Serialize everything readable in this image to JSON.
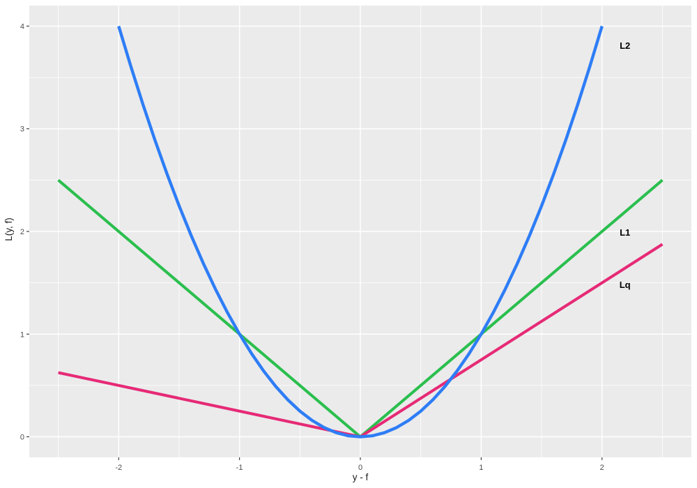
{
  "figure": {
    "bg": "#FFFFFF",
    "panel_bg": "#EBEBEB",
    "grid_major_color": "#FFFFFF",
    "grid_minor_color": "#FFFFFF",
    "tick_mark_color": "#333333",
    "tick_label_color": "#4D4D4D",
    "axis_title_color": "#1A1A1A",
    "annotation_color": "#000000"
  },
  "chart_data": {
    "type": "line",
    "title": "",
    "xlabel": "y - f",
    "ylabel": "L(y, f)",
    "xlim": [
      -2.74,
      2.74
    ],
    "ylim": [
      -0.2,
      4.2
    ],
    "x_ticks": [
      {
        "v": -2,
        "label": "-2"
      },
      {
        "v": -1,
        "label": "-1"
      },
      {
        "v": 0,
        "label": "0"
      },
      {
        "v": 1,
        "label": "1"
      },
      {
        "v": 2,
        "label": "2"
      }
    ],
    "y_ticks": [
      {
        "v": 0,
        "label": "0"
      },
      {
        "v": 1,
        "label": "1"
      },
      {
        "v": 2,
        "label": "2"
      },
      {
        "v": 3,
        "label": "3"
      },
      {
        "v": 4,
        "label": "4"
      }
    ],
    "x_minor_ticks": [
      -2.5,
      -1.5,
      -0.5,
      0.5,
      1.5,
      2.5
    ],
    "y_minor_ticks": [
      0.5,
      1.5,
      2.5,
      3.5
    ],
    "grid": true,
    "legend_position": "none",
    "series": [
      {
        "name": "L1",
        "description": "absolute loss |y-f|",
        "color": "#2BBF4E",
        "width": 4.1,
        "points": [
          [
            -2.5,
            2.5
          ],
          [
            0,
            0
          ],
          [
            2.5,
            2.5
          ]
        ]
      },
      {
        "name": "Lq",
        "description": "quantile loss, q=0.75",
        "color": "#E62A76",
        "width": 4.1,
        "points": [
          [
            -2.5,
            0.625
          ],
          [
            0,
            0
          ],
          [
            2.5,
            1.875
          ]
        ]
      },
      {
        "name": "L2",
        "description": "squared loss (y-f)^2",
        "color": "#2E7DF6",
        "width": 4.4,
        "points": [
          [
            -2,
            4
          ],
          [
            -1.9,
            3.61
          ],
          [
            -1.8,
            3.24
          ],
          [
            -1.7,
            2.89
          ],
          [
            -1.6,
            2.56
          ],
          [
            -1.5,
            2.25
          ],
          [
            -1.4,
            1.96
          ],
          [
            -1.3,
            1.69
          ],
          [
            -1.2,
            1.44
          ],
          [
            -1.1,
            1.21
          ],
          [
            -1,
            1
          ],
          [
            -0.9,
            0.81
          ],
          [
            -0.8,
            0.64
          ],
          [
            -0.7,
            0.49
          ],
          [
            -0.6,
            0.36
          ],
          [
            -0.5,
            0.25
          ],
          [
            -0.4,
            0.16
          ],
          [
            -0.3,
            0.09
          ],
          [
            -0.2,
            0.04
          ],
          [
            -0.1,
            0.01
          ],
          [
            0,
            0
          ],
          [
            0.1,
            0.01
          ],
          [
            0.2,
            0.04
          ],
          [
            0.3,
            0.09
          ],
          [
            0.4,
            0.16
          ],
          [
            0.5,
            0.25
          ],
          [
            0.6,
            0.36
          ],
          [
            0.7,
            0.49
          ],
          [
            0.8,
            0.64
          ],
          [
            0.9,
            0.81
          ],
          [
            1,
            1
          ],
          [
            1.1,
            1.21
          ],
          [
            1.2,
            1.44
          ],
          [
            1.3,
            1.69
          ],
          [
            1.4,
            1.96
          ],
          [
            1.5,
            2.25
          ],
          [
            1.6,
            2.56
          ],
          [
            1.7,
            2.89
          ],
          [
            1.8,
            3.24
          ],
          [
            1.9,
            3.61
          ],
          [
            2,
            4
          ]
        ]
      }
    ],
    "annotations": [
      {
        "text": "L2",
        "x": 2.19,
        "y": 3.81
      },
      {
        "text": "L1",
        "x": 2.19,
        "y": 1.99
      },
      {
        "text": "Lq",
        "x": 2.19,
        "y": 1.48
      }
    ]
  }
}
